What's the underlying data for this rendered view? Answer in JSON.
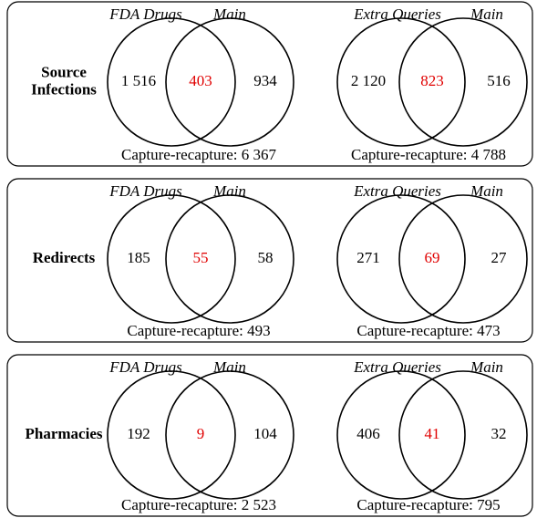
{
  "panels": [
    {
      "label": [
        "Source",
        "Infections"
      ],
      "venns": [
        {
          "left_label": "FDA Drugs",
          "right_label": "Main",
          "left_only": "1 516",
          "both": "403",
          "right_only": "934",
          "capture": "Capture-recapture: 6 367"
        },
        {
          "left_label": "Extra Queries",
          "right_label": "Main",
          "left_only": "2 120",
          "both": "823",
          "right_only": "516",
          "capture": "Capture-recapture: 4 788"
        }
      ]
    },
    {
      "label": [
        "Redirects"
      ],
      "venns": [
        {
          "left_label": "FDA Drugs",
          "right_label": "Main",
          "left_only": "185",
          "both": "55",
          "right_only": "58",
          "capture": "Capture-recapture: 493"
        },
        {
          "left_label": "Extra Queries",
          "right_label": "Main",
          "left_only": "271",
          "both": "69",
          "right_only": "27",
          "capture": "Capture-recapture: 473"
        }
      ]
    },
    {
      "label": [
        "Pharmacies"
      ],
      "venns": [
        {
          "left_label": "FDA Drugs",
          "right_label": "Main",
          "left_only": "192",
          "both": "9",
          "right_only": "104",
          "capture": "Capture-recapture: 2 523"
        },
        {
          "left_label": "Extra Queries",
          "right_label": "Main",
          "left_only": "406",
          "both": "41",
          "right_only": "32",
          "capture": "Capture-recapture: 795"
        }
      ]
    }
  ]
}
